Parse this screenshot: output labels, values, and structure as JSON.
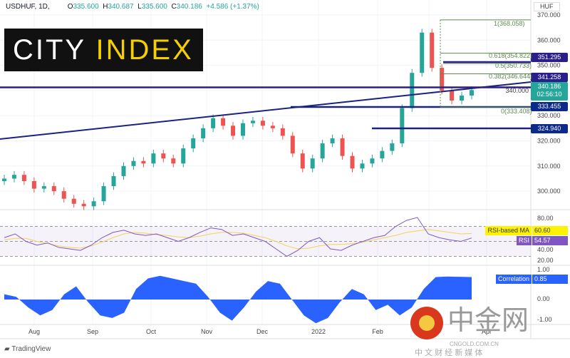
{
  "header": {
    "symbol": "USDHUF, 1D,",
    "open_label": "O",
    "open": "335.600",
    "high_label": "H",
    "high": "340.687",
    "low_label": "L",
    "low": "335.600",
    "close_label": "C",
    "close": "340.186",
    "change": "+4.586 (+1.37%)"
  },
  "logo": {
    "text1": "CITY",
    "text2": "INDEX"
  },
  "currency": "HUF",
  "price_tag": {
    "price": "340.186",
    "countdown": "02:56:10"
  },
  "level_tags": [
    "351.295",
    "341.258",
    "333.455",
    "324.940"
  ],
  "fib_labels": [
    "1(368.058)",
    "0.618(354.822)",
    "0.5(350.733)",
    "0.382(346.644)",
    "0(333.408)"
  ],
  "rsi": {
    "ma_label": "RSI-based MA",
    "ma_value": "60.60",
    "label": "RSI",
    "value": "54.57",
    "ticks": [
      "80.00",
      "40.00",
      "20.00"
    ]
  },
  "correlation": {
    "label": "Correlation",
    "value": "0.85",
    "ticks": [
      "1.00",
      "0.00",
      "-1.00"
    ]
  },
  "footer": {
    "brand": "TradingView"
  },
  "watermark": {
    "name": "中金网",
    "url": "CNGOLD.COM.CN",
    "tagline": "中 文 财 经 新 媒 体"
  },
  "colors": {
    "up": "#26a69a",
    "down": "#ef5350",
    "level": "#1a237e",
    "fib": "#5d8a4e",
    "rsi": "#7e57c2",
    "rsi_ma": "#f2d35b",
    "corr": "#2962ff"
  },
  "chart_data": {
    "type": "candlestick",
    "price_axis": {
      "range": [
        292,
        372
      ],
      "ticks": [
        370,
        360,
        350,
        340,
        330,
        320,
        310,
        300
      ]
    },
    "time_ticks": [
      "Aug",
      "Sep",
      "Oct",
      "Nov",
      "Dec",
      "2022",
      "Feb",
      "Mar",
      "Apr"
    ],
    "closes": [
      305,
      306.5,
      304,
      301,
      302,
      300,
      297,
      295,
      294,
      296,
      302,
      306,
      310,
      312,
      311,
      315,
      313,
      311,
      317,
      321,
      325,
      329,
      326,
      322,
      327,
      328,
      326,
      325,
      322,
      315,
      309,
      313,
      319,
      321,
      314,
      309,
      311,
      313,
      316,
      319,
      333,
      347,
      363,
      349,
      340,
      336,
      338,
      340.186
    ],
    "levels": [
      351.295,
      341.258,
      333.455,
      324.94
    ],
    "fib": [
      368.058,
      354.822,
      350.733,
      346.644,
      333.408
    ],
    "rsi": [
      55,
      60,
      50,
      45,
      48,
      42,
      40,
      38,
      45,
      55,
      62,
      65,
      60,
      58,
      60,
      55,
      50,
      55,
      62,
      68,
      66,
      58,
      60,
      55,
      50,
      40,
      30,
      38,
      50,
      55,
      40,
      38,
      45,
      50,
      55,
      58,
      70,
      78,
      82,
      60,
      55,
      52,
      50,
      54.57
    ],
    "rsi_ma": [
      52,
      54,
      54,
      50,
      47,
      44,
      42,
      41,
      44,
      49,
      55,
      60,
      62,
      61,
      59,
      58,
      56,
      55,
      57,
      60,
      62,
      62,
      61,
      58,
      55,
      50,
      44,
      40,
      41,
      44,
      46,
      46,
      47,
      49,
      52,
      55,
      58,
      62,
      64,
      66,
      64,
      62,
      60,
      60.6
    ],
    "corr": [
      0.2,
      0.1,
      -0.3,
      -0.6,
      -0.4,
      0.2,
      0.5,
      -0.1,
      -0.6,
      -0.7,
      -0.5,
      0.4,
      0.8,
      0.9,
      0.8,
      0.7,
      0.6,
      0.1,
      -0.5,
      -0.8,
      -0.3,
      0.3,
      0.7,
      0.6,
      0,
      -0.6,
      -0.9,
      -0.7,
      -0.1,
      0.4,
      0.2,
      -0.4,
      -0.2,
      -0.6,
      -0.3,
      0.4,
      0.85,
      0.87,
      0.86,
      0.85
    ]
  }
}
